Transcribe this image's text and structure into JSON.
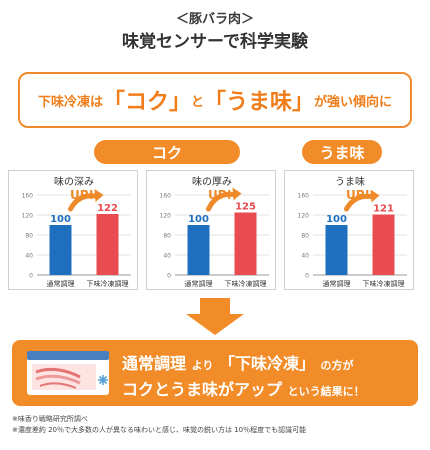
{
  "header": {
    "subtitle": "＜豚バラ肉＞",
    "title": "味覚センサーで科学実験"
  },
  "headline": {
    "part1": "下味冷凍は",
    "term1": "「コク」",
    "part2": "と",
    "term2": "「うま味」",
    "part3": "が強い傾向に"
  },
  "tags": {
    "koku": "コク",
    "umami": "うま味"
  },
  "up_label": "UP!",
  "colors": {
    "normal_bar": "#1f6fbf",
    "frozen_bar": "#e84b50",
    "accent": "#f28c28",
    "up_arrow": "#ef8a2a"
  },
  "chart_data": [
    {
      "type": "bar",
      "title": "味の深み",
      "categories": [
        "通常調理",
        "下味冷凍調理"
      ],
      "values": [
        100,
        122
      ],
      "ylim": [
        0,
        160
      ],
      "yticks": [
        0,
        40,
        80,
        120,
        160
      ]
    },
    {
      "type": "bar",
      "title": "味の厚み",
      "categories": [
        "通常調理",
        "下味冷凍調理"
      ],
      "values": [
        100,
        125
      ],
      "ylim": [
        0,
        160
      ],
      "yticks": [
        0,
        40,
        80,
        120,
        160
      ]
    },
    {
      "type": "bar",
      "title": "うま味",
      "categories": [
        "通常調理",
        "下味冷凍調理"
      ],
      "values": [
        100,
        121
      ],
      "ylim": [
        0,
        160
      ],
      "yticks": [
        0,
        40,
        80,
        120,
        160
      ]
    }
  ],
  "banner": {
    "l1_a": "通常調理",
    "l1_b": "より",
    "l1_c": "「下味冷凍」",
    "l1_d": "の方が",
    "l2_a": "コクとうま味がアップ",
    "l2_b": "という結果に！"
  },
  "notes": [
    "※味香り戦略研究所調べ",
    "※濃度差約 20％で大多数の人が異なる味わいと感じ、味覚の鋭い方は 10％程度でも認識可能"
  ]
}
